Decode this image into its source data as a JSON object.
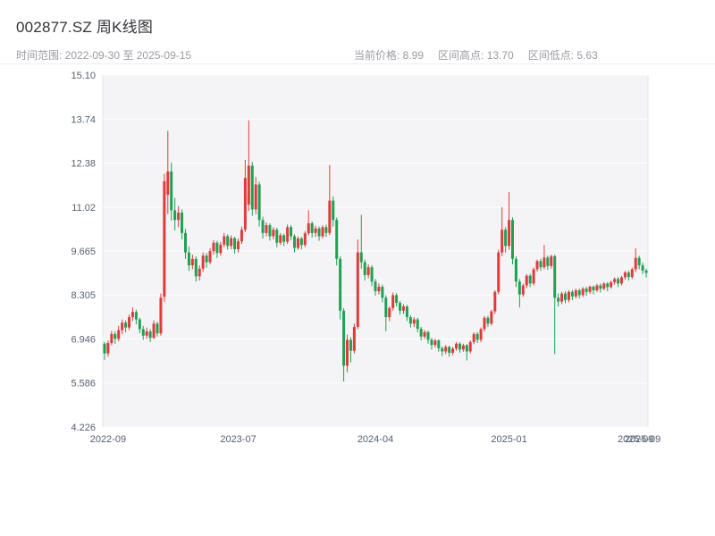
{
  "header": {
    "title": "002877.SZ 周K线图",
    "range_label": "时间范围: 2022-09-30 至 2025-09-15",
    "current_price_label": "当前价格: 8.99",
    "range_high_label": "区间高点: 13.70",
    "range_low_label": "区间低点: 5.63"
  },
  "chart_data": {
    "type": "candlestick",
    "symbol": "002877.SZ",
    "title": "002877.SZ 周K线图",
    "freq": "weekly",
    "date_range": [
      "2022-09-30",
      "2025-09-15"
    ],
    "current_price": 8.99,
    "range_high": 13.7,
    "range_low": 5.63,
    "ylim": [
      4.226,
      15.1
    ],
    "grid": true,
    "y_tick_values": [
      15.1,
      13.74,
      12.38,
      11.02,
      9.665,
      8.305,
      6.946,
      5.586,
      4.226
    ],
    "y_tick_labels": [
      "15.10",
      "13.74",
      "12.38",
      "11.02",
      "9.665",
      "8.305",
      "6.946",
      "5.586",
      "4.226"
    ],
    "x_ticks": [
      {
        "label": "2022-09",
        "week": 1
      },
      {
        "label": "2023-07",
        "week": 38
      },
      {
        "label": "2024-04",
        "week": 77
      },
      {
        "label": "2025-01",
        "week": 115
      },
      {
        "label": "2025-09",
        "week": 151
      },
      {
        "label": "2025-09",
        "week": 153
      }
    ],
    "colors": {
      "up": "#e03b3c",
      "down": "#1fa052",
      "plot_bg": "#f4f4f6",
      "grid": "#ffffff",
      "border": "#e4e4ea",
      "axis_text": "#566070"
    },
    "candles": [
      [
        6.8,
        6.85,
        6.3,
        6.5
      ],
      [
        6.5,
        6.9,
        6.4,
        6.82
      ],
      [
        6.82,
        7.2,
        6.75,
        7.1
      ],
      [
        7.1,
        7.18,
        6.8,
        6.95
      ],
      [
        6.95,
        7.35,
        6.88,
        7.22
      ],
      [
        7.22,
        7.55,
        7.1,
        7.45
      ],
      [
        7.45,
        7.52,
        7.15,
        7.3
      ],
      [
        7.3,
        7.7,
        7.22,
        7.62
      ],
      [
        7.62,
        7.92,
        7.5,
        7.78
      ],
      [
        7.78,
        7.85,
        7.4,
        7.55
      ],
      [
        7.55,
        7.6,
        7.12,
        7.25
      ],
      [
        7.25,
        7.35,
        6.92,
        7.05
      ],
      [
        7.05,
        7.3,
        6.95,
        7.18
      ],
      [
        7.18,
        7.25,
        6.85,
        6.98
      ],
      [
        6.98,
        7.52,
        6.95,
        7.42
      ],
      [
        7.42,
        7.48,
        7.02,
        7.12
      ],
      [
        7.12,
        8.35,
        7.05,
        8.22
      ],
      [
        8.25,
        12.05,
        8.1,
        11.82
      ],
      [
        11.4,
        13.38,
        10.8,
        12.12
      ],
      [
        12.12,
        12.4,
        10.6,
        10.92
      ],
      [
        10.92,
        11.3,
        10.3,
        10.62
      ],
      [
        10.62,
        11.05,
        10.4,
        10.85
      ],
      [
        10.85,
        10.95,
        10.02,
        10.22
      ],
      [
        10.22,
        10.35,
        9.42,
        9.62
      ],
      [
        9.62,
        9.8,
        9.05,
        9.22
      ],
      [
        9.22,
        9.55,
        9.1,
        9.42
      ],
      [
        9.42,
        9.5,
        8.72,
        8.88
      ],
      [
        8.88,
        9.22,
        8.75,
        9.12
      ],
      [
        9.12,
        9.62,
        9.02,
        9.52
      ],
      [
        9.52,
        9.6,
        9.15,
        9.32
      ],
      [
        9.32,
        9.75,
        9.25,
        9.66
      ],
      [
        9.66,
        10.0,
        9.55,
        9.92
      ],
      [
        9.92,
        9.98,
        9.45,
        9.6
      ],
      [
        9.6,
        9.95,
        9.52,
        9.86
      ],
      [
        9.86,
        10.22,
        9.78,
        10.12
      ],
      [
        10.12,
        10.18,
        9.7,
        9.82
      ],
      [
        9.82,
        10.15,
        9.72,
        10.06
      ],
      [
        10.06,
        10.1,
        9.58,
        9.72
      ],
      [
        9.72,
        10.05,
        9.62,
        9.96
      ],
      [
        9.96,
        10.42,
        9.88,
        10.32
      ],
      [
        10.32,
        12.48,
        10.25,
        11.92
      ],
      [
        11.1,
        13.7,
        10.9,
        12.3
      ],
      [
        12.3,
        12.42,
        10.75,
        10.95
      ],
      [
        10.95,
        11.95,
        10.8,
        11.72
      ],
      [
        11.72,
        11.8,
        10.42,
        10.62
      ],
      [
        10.62,
        10.72,
        10.05,
        10.22
      ],
      [
        10.22,
        10.55,
        10.12,
        10.46
      ],
      [
        10.46,
        10.52,
        9.98,
        10.12
      ],
      [
        10.12,
        10.4,
        10.02,
        10.32
      ],
      [
        10.32,
        10.38,
        9.78,
        9.92
      ],
      [
        9.92,
        10.22,
        9.85,
        10.15
      ],
      [
        10.15,
        10.2,
        9.82,
        9.95
      ],
      [
        9.95,
        10.48,
        9.88,
        10.4
      ],
      [
        10.4,
        10.46,
        10.0,
        10.12
      ],
      [
        10.12,
        10.18,
        9.62,
        9.76
      ],
      [
        9.76,
        10.12,
        9.7,
        10.05
      ],
      [
        10.05,
        10.1,
        9.72,
        9.85
      ],
      [
        9.85,
        10.28,
        9.78,
        10.21
      ],
      [
        10.21,
        10.92,
        10.15,
        10.52
      ],
      [
        10.52,
        10.58,
        10.08,
        10.22
      ],
      [
        10.22,
        10.45,
        10.1,
        10.36
      ],
      [
        10.36,
        10.42,
        9.98,
        10.12
      ],
      [
        10.12,
        10.46,
        10.05,
        10.4
      ],
      [
        10.4,
        10.48,
        10.1,
        10.22
      ],
      [
        10.22,
        12.32,
        10.15,
        11.22
      ],
      [
        11.22,
        11.35,
        10.42,
        10.62
      ],
      [
        10.62,
        10.7,
        9.22,
        9.42
      ],
      [
        9.42,
        9.5,
        7.55,
        7.82
      ],
      [
        7.82,
        7.9,
        5.63,
        6.12
      ],
      [
        6.12,
        7.08,
        5.92,
        6.92
      ],
      [
        6.92,
        7.0,
        6.22,
        6.58
      ],
      [
        6.58,
        7.42,
        6.5,
        7.32
      ],
      [
        7.32,
        10.02,
        7.25,
        9.62
      ],
      [
        9.62,
        10.78,
        9.12,
        9.32
      ],
      [
        9.32,
        9.4,
        8.75,
        8.92
      ],
      [
        8.92,
        9.25,
        8.82,
        9.16
      ],
      [
        9.16,
        9.22,
        8.58,
        8.72
      ],
      [
        8.72,
        8.8,
        8.28,
        8.42
      ],
      [
        8.42,
        8.66,
        8.32,
        8.56
      ],
      [
        8.56,
        8.62,
        8.08,
        8.22
      ],
      [
        8.22,
        8.3,
        7.18,
        7.62
      ],
      [
        7.62,
        7.95,
        7.5,
        7.9
      ],
      [
        7.9,
        8.38,
        7.82,
        8.3
      ],
      [
        8.3,
        8.36,
        7.95,
        8.06
      ],
      [
        8.06,
        8.12,
        7.7,
        7.82
      ],
      [
        7.82,
        8.02,
        7.72,
        7.95
      ],
      [
        7.95,
        8.0,
        7.5,
        7.62
      ],
      [
        7.62,
        7.68,
        7.3,
        7.42
      ],
      [
        7.42,
        7.62,
        7.32,
        7.55
      ],
      [
        7.55,
        7.6,
        7.15,
        7.26
      ],
      [
        7.26,
        7.32,
        6.9,
        7.02
      ],
      [
        7.02,
        7.22,
        6.95,
        7.16
      ],
      [
        7.16,
        7.2,
        6.8,
        6.92
      ],
      [
        6.92,
        6.98,
        6.62,
        6.76
      ],
      [
        6.76,
        6.95,
        6.68,
        6.9
      ],
      [
        6.9,
        6.94,
        6.55,
        6.66
      ],
      [
        6.66,
        6.72,
        6.42,
        6.56
      ],
      [
        6.56,
        6.76,
        6.48,
        6.7
      ],
      [
        6.7,
        6.74,
        6.4,
        6.52
      ],
      [
        6.52,
        6.7,
        6.45,
        6.65
      ],
      [
        6.65,
        6.85,
        6.58,
        6.8
      ],
      [
        6.8,
        6.84,
        6.52,
        6.62
      ],
      [
        6.62,
        6.8,
        6.55,
        6.75
      ],
      [
        6.75,
        6.79,
        6.28,
        6.56
      ],
      [
        6.56,
        6.9,
        6.5,
        6.85
      ],
      [
        6.85,
        7.15,
        6.78,
        7.1
      ],
      [
        7.1,
        7.16,
        6.82,
        6.92
      ],
      [
        6.92,
        7.3,
        6.85,
        7.25
      ],
      [
        7.25,
        7.65,
        7.18,
        7.6
      ],
      [
        7.6,
        7.66,
        7.32,
        7.42
      ],
      [
        7.42,
        7.85,
        7.36,
        7.8
      ],
      [
        7.8,
        8.45,
        7.72,
        8.4
      ],
      [
        8.4,
        9.7,
        8.32,
        9.62
      ],
      [
        9.62,
        11.02,
        9.5,
        10.32
      ],
      [
        10.32,
        10.4,
        9.62,
        9.82
      ],
      [
        9.82,
        11.48,
        9.7,
        10.62
      ],
      [
        10.62,
        10.7,
        9.25,
        9.42
      ],
      [
        9.42,
        9.5,
        8.55,
        8.72
      ],
      [
        8.72,
        8.8,
        7.92,
        8.32
      ],
      [
        8.32,
        8.66,
        8.25,
        8.6
      ],
      [
        8.6,
        8.95,
        8.52,
        8.9
      ],
      [
        8.9,
        8.96,
        8.55,
        8.66
      ],
      [
        8.66,
        9.15,
        8.6,
        9.1
      ],
      [
        9.1,
        9.4,
        9.02,
        9.35
      ],
      [
        9.35,
        9.42,
        9.05,
        9.16
      ],
      [
        9.16,
        9.85,
        9.1,
        9.46
      ],
      [
        9.46,
        9.52,
        9.08,
        9.2
      ],
      [
        9.2,
        9.55,
        9.12,
        9.5
      ],
      [
        9.5,
        9.55,
        6.48,
        8.22
      ],
      [
        8.22,
        8.35,
        7.95,
        8.1
      ],
      [
        8.1,
        8.4,
        8.02,
        8.35
      ],
      [
        8.35,
        8.42,
        8.05,
        8.15
      ],
      [
        8.15,
        8.45,
        8.08,
        8.4
      ],
      [
        8.4,
        8.46,
        8.15,
        8.26
      ],
      [
        8.26,
        8.5,
        8.2,
        8.45
      ],
      [
        8.45,
        8.5,
        8.2,
        8.3
      ],
      [
        8.3,
        8.55,
        8.24,
        8.5
      ],
      [
        8.5,
        8.56,
        8.28,
        8.4
      ],
      [
        8.4,
        8.6,
        8.34,
        8.56
      ],
      [
        8.56,
        8.6,
        8.32,
        8.45
      ],
      [
        8.45,
        8.65,
        8.4,
        8.6
      ],
      [
        8.6,
        8.66,
        8.38,
        8.5
      ],
      [
        8.5,
        8.7,
        8.45,
        8.66
      ],
      [
        8.66,
        8.7,
        8.42,
        8.55
      ],
      [
        8.55,
        8.75,
        8.5,
        8.7
      ],
      [
        8.7,
        8.85,
        8.62,
        8.8
      ],
      [
        8.8,
        8.86,
        8.55,
        8.66
      ],
      [
        8.66,
        8.9,
        8.6,
        8.85
      ],
      [
        8.85,
        9.05,
        8.78,
        9.0
      ],
      [
        9.0,
        9.06,
        8.75,
        8.86
      ],
      [
        8.86,
        9.15,
        8.8,
        9.1
      ],
      [
        9.1,
        9.75,
        9.02,
        9.45
      ],
      [
        9.45,
        9.52,
        9.1,
        9.22
      ],
      [
        9.22,
        9.3,
        8.95,
        9.06
      ],
      [
        9.06,
        9.12,
        8.85,
        8.99
      ]
    ]
  }
}
